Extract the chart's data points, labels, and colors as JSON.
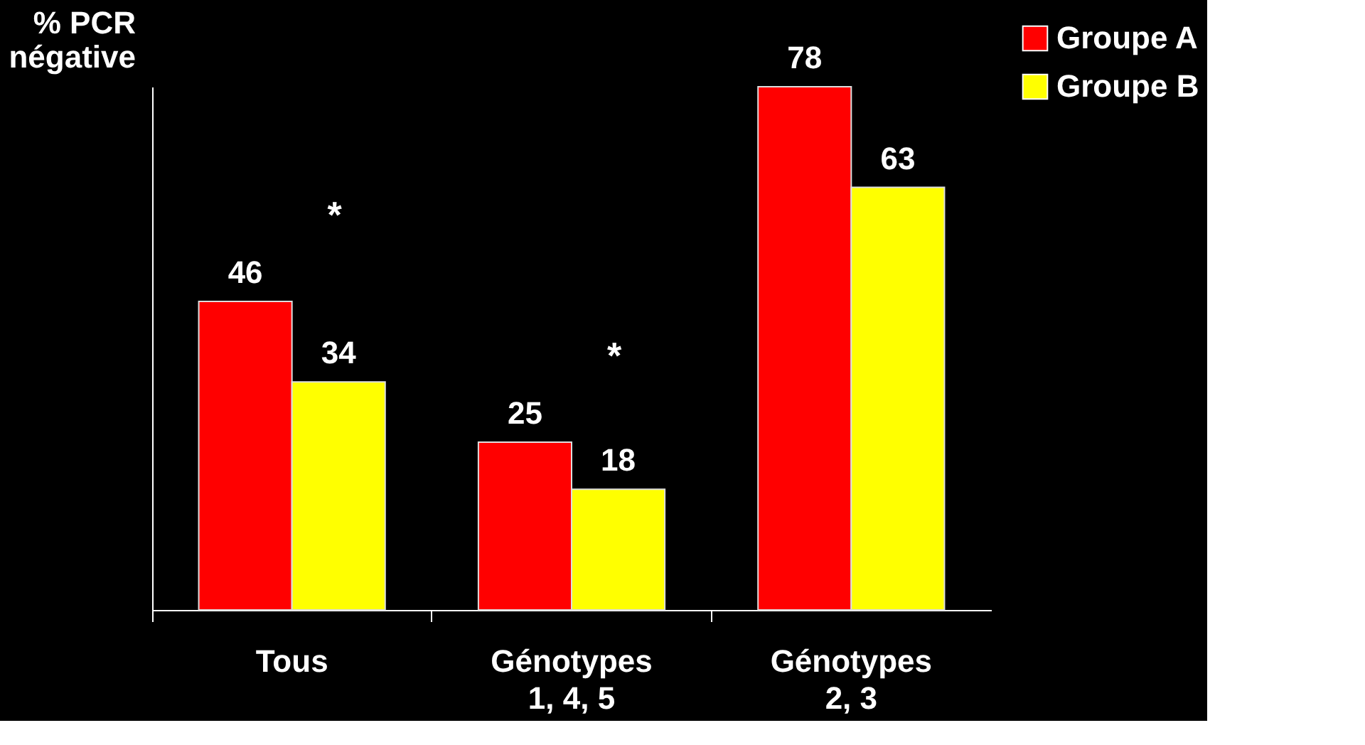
{
  "chart_data": {
    "type": "bar",
    "ylabel": "% PCR\nnégative",
    "categories": [
      "Tous",
      "Génotypes\n1, 4, 5",
      "Génotypes\n2, 3"
    ],
    "series": [
      {
        "name": "Groupe A",
        "color": "#ff0000",
        "values": [
          46,
          25,
          78
        ]
      },
      {
        "name": "Groupe B",
        "color": "#ffff00",
        "values": [
          34,
          18,
          63
        ]
      }
    ],
    "data_labels": true,
    "annotations": [
      "*",
      "*"
    ],
    "legend": "right",
    "grid": false
  }
}
